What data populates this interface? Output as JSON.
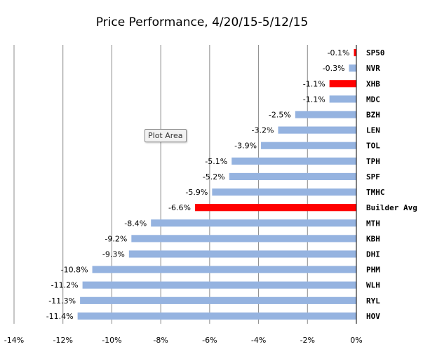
{
  "chart_data": {
    "type": "bar",
    "orientation": "horizontal",
    "title": "Price Performance, 4/20/15-5/12/15",
    "xlabel": "",
    "ylabel": "",
    "xlim": [
      -14,
      0
    ],
    "x_ticks": [
      "-14%",
      "-12%",
      "-10%",
      "-8%",
      "-6%",
      "-4%",
      "-2%",
      "0%"
    ],
    "x_tick_values": [
      -14,
      -12,
      -10,
      -8,
      -6,
      -4,
      -2,
      0
    ],
    "grid": "vertical",
    "legend": "none",
    "categories": [
      "SP50",
      "NVR",
      "XHB",
      "MDC",
      "BZH",
      "LEN",
      "TOL",
      "TPH",
      "SPF",
      "TMHC",
      "Builder Avg",
      "MTH",
      "KBH",
      "DHI",
      "PHM",
      "WLH",
      "RYL",
      "HOV"
    ],
    "values": [
      -0.1,
      -0.3,
      -1.1,
      -1.1,
      -2.5,
      -3.2,
      -3.9,
      -5.1,
      -5.2,
      -5.9,
      -6.6,
      -8.4,
      -9.2,
      -9.3,
      -10.8,
      -11.2,
      -11.3,
      -11.4
    ],
    "data_labels": [
      "-0.1%",
      "-0.3%",
      "-1.1%",
      "-1.1%",
      "-2.5%",
      "-3.2%",
      "-3.9%",
      "-5.1%",
      "-5.2%",
      "-5.9%",
      "-6.6%",
      "-8.4%",
      "-9.2%",
      "-9.3%",
      "-10.8%",
      "-11.2%",
      "-11.3%",
      "-11.4%"
    ],
    "highlighted": [
      "SP50",
      "XHB",
      "Builder Avg"
    ],
    "colors": {
      "default": "#95B3E0",
      "highlight": "#FF0000",
      "grid": "#8c8c8c",
      "axis": "#000000"
    }
  },
  "tooltip": {
    "text": "Plot Area"
  }
}
